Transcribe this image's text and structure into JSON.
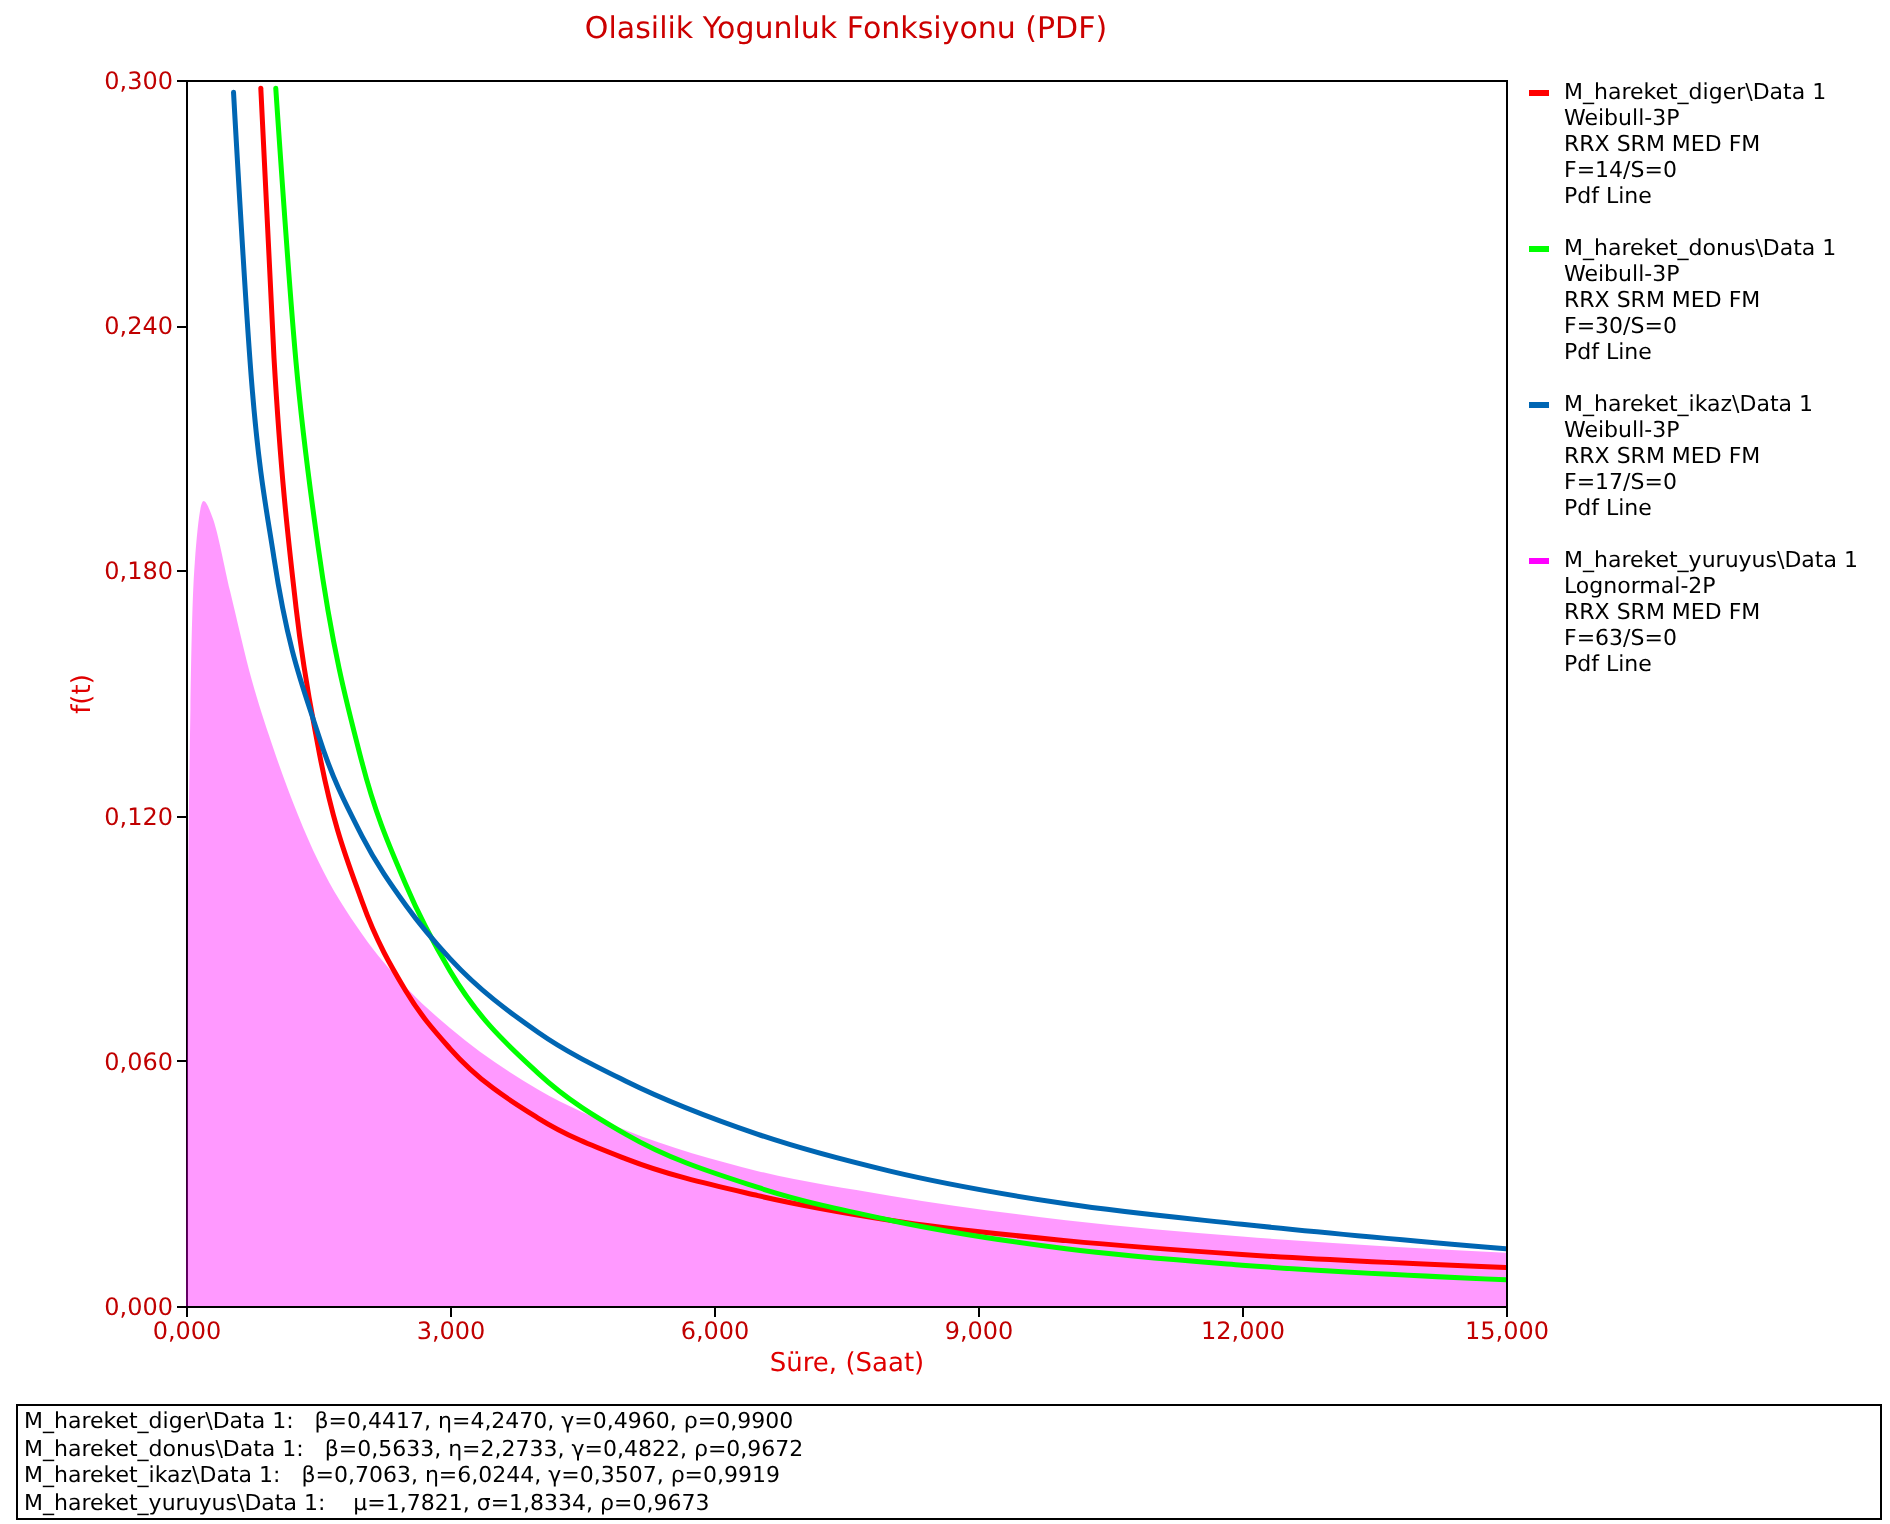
{
  "chart_data": {
    "type": "line",
    "title": "Olasilik Yogunluk Fonksiyonu (PDF)",
    "xlabel": "Süre, (Saat)",
    "ylabel": "f(t)",
    "xlim": [
      0,
      15
    ],
    "ylim": [
      0,
      0.3
    ],
    "xticks": [
      {
        "value": 0,
        "label": "0,000"
      },
      {
        "value": 3,
        "label": "3,000"
      },
      {
        "value": 6,
        "label": "6,000"
      },
      {
        "value": 9,
        "label": "9,000"
      },
      {
        "value": 12,
        "label": "12,000"
      },
      {
        "value": 15,
        "label": "15,000"
      }
    ],
    "yticks": [
      {
        "value": 0,
        "label": "0,000"
      },
      {
        "value": 0.06,
        "label": "0,060"
      },
      {
        "value": 0.12,
        "label": "0,120"
      },
      {
        "value": 0.18,
        "label": "0,180"
      },
      {
        "value": 0.24,
        "label": "0,240"
      },
      {
        "value": 0.3,
        "label": "0,300"
      }
    ],
    "grid": false,
    "legend": "right",
    "marker": "none",
    "line_style": "solid",
    "series": [
      {
        "name": "M_hareket_diger\\Data 1\nWeibull-3P\nRRX SRM MED FM\nF=14/S=0\nPdf Line",
        "color": "#ff0000",
        "x": [
          0.85,
          1,
          1.25,
          1.5,
          2,
          2.5,
          3,
          4,
          5,
          6.5,
          8,
          10,
          12,
          15
        ],
        "values": [
          0.298,
          0.232,
          0.171,
          0.137,
          0.099,
          0.077,
          0.063,
          0.046,
          0.036,
          0.027,
          0.021,
          0.016,
          0.0126,
          0.0094
        ]
      },
      {
        "name": "M_hareket_donus\\Data 1\nWeibull-3P\nRRX SRM MED FM\nF=30/S=0\nPdf Line",
        "color": "#00ff00",
        "x": [
          1.02,
          1.25,
          1.5,
          2,
          2.5,
          3,
          4,
          5,
          6.5,
          8,
          10,
          12,
          15
        ],
        "values": [
          0.298,
          0.231,
          0.186,
          0.133,
          0.103,
          0.082,
          0.057,
          0.042,
          0.029,
          0.021,
          0.014,
          0.01,
          0.0064
        ]
      },
      {
        "name": "M_hareket_ikaz\\Data 1\nWeibull-3P\nRRX SRM MED FM\nF=17/S=0\nPdf Line",
        "color": "#0066b3",
        "x": [
          0.54,
          0.75,
          1,
          1.5,
          2,
          2.5,
          3,
          4,
          5,
          6.5,
          8,
          10,
          12,
          15
        ],
        "values": [
          0.297,
          0.225,
          0.183,
          0.14,
          0.115,
          0.098,
          0.085,
          0.067,
          0.055,
          0.042,
          0.033,
          0.025,
          0.02,
          0.014
        ]
      },
      {
        "name": "M_hareket_yuruyus\\Data 1\nLognormal-2P\nRRX SRM MED FM\nF=63/S=0\nPdf Line",
        "color": "#ff00ff",
        "type": "area",
        "x": [
          0,
          0.01,
          0.02,
          0.05,
          0.1,
          0.2,
          0.3,
          0.5,
          0.75,
          1,
          1.5,
          2,
          2.5,
          3,
          4,
          5,
          6.5,
          8,
          10,
          12,
          15
        ],
        "values": [
          0,
          0.05,
          0.088,
          0.146,
          0.182,
          0.197,
          0.193,
          0.175,
          0.153,
          0.136,
          0.109,
          0.091,
          0.078,
          0.068,
          0.053,
          0.043,
          0.033,
          0.027,
          0.021,
          0.017,
          0.013
        ]
      }
    ],
    "annotations": [
      "M_hareket_diger\\Data 1:   β=0,4417, η=4,2470, γ=0,4960, ρ=0,9900",
      "M_hareket_donus\\Data 1:   β=0,5633, η=2,2733, γ=0,4822, ρ=0,9672",
      "M_hareket_ikaz\\Data 1:   β=0,7063, η=6,0244, γ=0,3507, ρ=0,9919",
      "M_hareket_yuruyus\\Data 1:    μ=1,7821, σ=1,8334, ρ=0,9673"
    ]
  }
}
